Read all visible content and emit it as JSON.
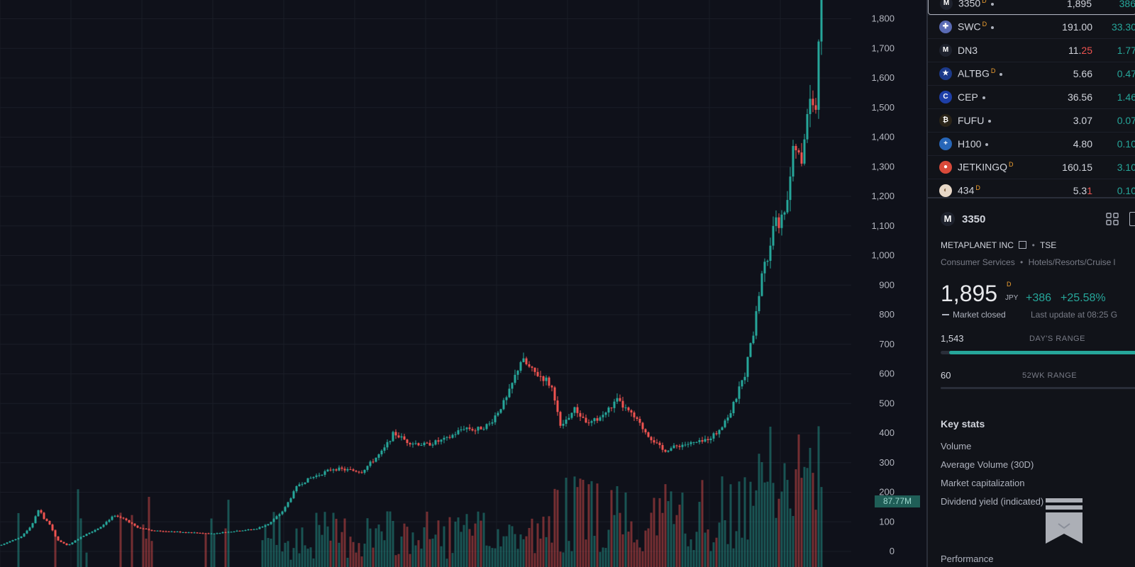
{
  "chart": {
    "price_axis": [
      "1,800",
      "1,700",
      "1,600",
      "1,500",
      "1,400",
      "1,300",
      "1,200",
      "1,100",
      "1,000",
      "900",
      "800",
      "700",
      "600",
      "500",
      "400",
      "300",
      "200",
      "100",
      "0"
    ],
    "volume_badge": "87.77M",
    "colors": {
      "up": "#26a69a",
      "down": "#ef5350",
      "background": "#0f111a",
      "grid": "#1a1d27"
    }
  },
  "watchlist": [
    {
      "icon": "metaplanet-logo-icon",
      "symbol": "3350",
      "flag": "D",
      "dot": true,
      "last": "1,895",
      "change": "386",
      "selected": true
    },
    {
      "icon": "uk-flag-icon",
      "symbol": "SWC",
      "flag": "D",
      "dot": true,
      "last": "191.00",
      "change": "33.30"
    },
    {
      "icon": "m-logo-icon",
      "symbol": "DN3",
      "flag": "",
      "dot": false,
      "last_a": "11.",
      "last_b": "25",
      "change": "1.77"
    },
    {
      "icon": "eu-flag-icon",
      "symbol": "ALTBG",
      "flag": "D",
      "dot": true,
      "last": "5.66",
      "change": "0.47"
    },
    {
      "icon": "c-logo-icon",
      "symbol": "CEP",
      "flag": "",
      "dot": true,
      "last": "36.56",
      "change": "1.46"
    },
    {
      "icon": "bitcoin-logo-icon",
      "symbol": "FUFU",
      "flag": "",
      "dot": true,
      "last": "3.07",
      "change": "0.07"
    },
    {
      "icon": "sweden-flag-icon",
      "symbol": "H100",
      "flag": "",
      "dot": true,
      "last": "4.80",
      "change": "0.10"
    },
    {
      "icon": "jetking-logo-icon",
      "symbol": "JETKINGQ",
      "flag": "D",
      "dot": false,
      "last": "160.15",
      "change": "3.10"
    },
    {
      "icon": "434-logo-icon",
      "symbol": "434",
      "flag": "D",
      "dot": false,
      "last_a": "5.3",
      "last_b": "1",
      "change": "0.10"
    }
  ],
  "details": {
    "symbol": "3350",
    "company": "METAPLANET INC",
    "exchange": "TSE",
    "sector": "Consumer Services",
    "industry": "Hotels/Resorts/Cruise l",
    "price": "1,895",
    "price_flag": "D",
    "currency": "JPY",
    "change": "+386",
    "change_pct": "+25.58%",
    "market_status": "Market closed",
    "last_update": "Last update at 08:25 G",
    "day_low": "1,543",
    "day_range_label": "DAY'S RANGE",
    "day_range_fill": 1.0,
    "wk_low": "60",
    "wk_range_label": "52WK RANGE",
    "key_stats_title": "Key stats",
    "stats": [
      "Volume",
      "Average Volume (30D)",
      "Market capitalization",
      "Dividend yield (indicated)"
    ],
    "performance_title": "Performance"
  }
}
